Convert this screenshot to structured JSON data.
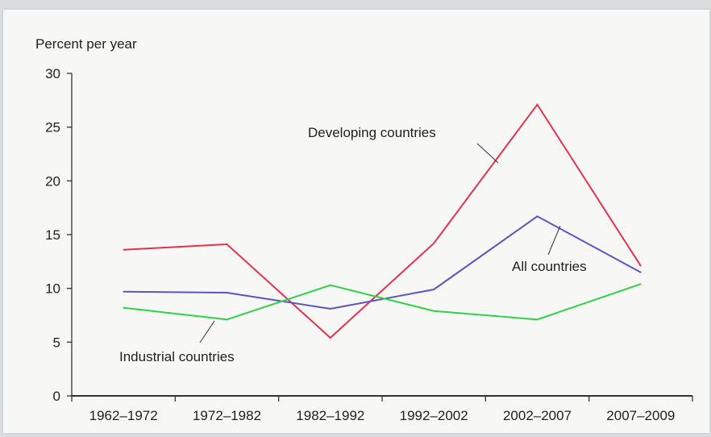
{
  "chart_data": {
    "type": "line",
    "title": "",
    "ylabel": "Percent per year",
    "xlabel": "",
    "ylim": [
      0,
      30
    ],
    "yticks": [
      0,
      5,
      10,
      15,
      20,
      25,
      30
    ],
    "categories": [
      "1962–1972",
      "1972–1982",
      "1982–1992",
      "1992–2002",
      "2002–2007",
      "2007–2009"
    ],
    "grid": false,
    "legend": "none (inline annotations)",
    "series": [
      {
        "name": "Developing countries",
        "color": "#e2344f",
        "values": [
          13.6,
          14.1,
          5.4,
          14.2,
          27.1,
          12.1
        ]
      },
      {
        "name": "All countries",
        "color": "#5a55c2",
        "values": [
          9.7,
          9.6,
          8.1,
          9.9,
          16.7,
          11.5
        ]
      },
      {
        "name": "Industrial countries",
        "color": "#33d04c",
        "values": [
          8.2,
          7.1,
          10.3,
          7.9,
          7.1,
          10.4
        ]
      }
    ]
  }
}
